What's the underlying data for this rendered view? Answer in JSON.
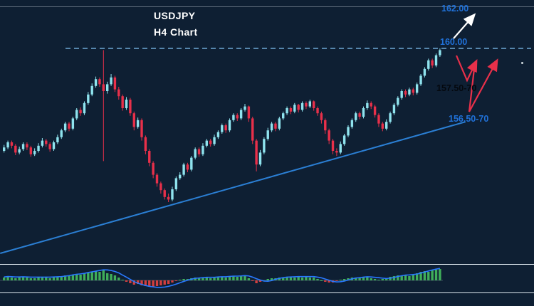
{
  "header": {
    "symbol": "USDJPY",
    "timeframe_label": "H4 Chart"
  },
  "annotations": {
    "target_upper": "162.00",
    "resistance": "160.00",
    "support_zone_upper": "157.50-70",
    "support_zone_lower": "156.50-70"
  },
  "colors": {
    "background": "#0e1f33",
    "bull": "#8fe3ee",
    "bear": "#e8304a",
    "trendline": "#2b7fd4",
    "resistance_line": "#6fa8d6",
    "label_blue": "#2071d8",
    "label_dark": "#04080e",
    "arrow_white": "#ffffff",
    "arrow_red": "#e8304a",
    "indicator_up": "#3fae5a",
    "indicator_down": "#d23f3f",
    "indicator_signal": "#2979ff",
    "separator": "#dde7ee"
  },
  "chart_data": {
    "type": "candlestick",
    "title": "USDJPY H4 Chart",
    "symbol": "USDJPY",
    "timeframe": "H4",
    "price_range_visible": [
      147.5,
      162.8
    ],
    "resistance_level": 160.0,
    "projection_target": 162.0,
    "support_zone_upper": "157.50-157.70",
    "support_zone_lower": "156.50-156.70",
    "trendline": {
      "from_index": -0.7,
      "from_price": 148.0,
      "to_index": 121,
      "to_price": 155.7
    },
    "candles": [
      [
        154.0,
        154.35,
        153.9,
        154.2
      ],
      [
        154.2,
        154.6,
        154.1,
        154.5
      ],
      [
        154.5,
        154.6,
        154.15,
        154.3
      ],
      [
        154.3,
        154.4,
        153.75,
        153.9
      ],
      [
        153.9,
        154.25,
        153.8,
        154.1
      ],
      [
        154.1,
        154.5,
        154.0,
        154.4
      ],
      [
        154.4,
        154.5,
        154.05,
        154.2
      ],
      [
        154.2,
        154.3,
        153.65,
        153.8
      ],
      [
        153.8,
        154.15,
        153.7,
        154.0
      ],
      [
        154.0,
        154.45,
        153.9,
        154.3
      ],
      [
        154.3,
        154.75,
        154.2,
        154.6
      ],
      [
        154.6,
        154.7,
        154.25,
        154.4
      ],
      [
        154.4,
        154.5,
        153.95,
        154.1
      ],
      [
        154.1,
        154.6,
        154.0,
        154.5
      ],
      [
        154.5,
        154.95,
        154.4,
        154.8
      ],
      [
        154.8,
        155.3,
        154.7,
        155.2
      ],
      [
        155.2,
        155.7,
        155.1,
        155.6
      ],
      [
        155.6,
        155.7,
        155.15,
        155.3
      ],
      [
        155.3,
        156.0,
        155.2,
        155.9
      ],
      [
        155.9,
        156.5,
        155.8,
        156.4
      ],
      [
        156.4,
        156.55,
        156.05,
        156.2
      ],
      [
        156.2,
        156.9,
        156.1,
        156.8
      ],
      [
        156.8,
        157.45,
        156.7,
        157.3
      ],
      [
        157.3,
        157.95,
        157.2,
        157.8
      ],
      [
        157.8,
        158.35,
        157.7,
        158.2
      ],
      [
        158.2,
        158.3,
        157.75,
        157.9
      ],
      [
        157.9,
        159.9,
        153.4,
        157.5
      ],
      [
        157.5,
        158.05,
        157.35,
        157.9
      ],
      [
        157.9,
        158.5,
        157.8,
        158.3
      ],
      [
        158.3,
        158.4,
        157.45,
        157.6
      ],
      [
        157.6,
        157.75,
        157.0,
        157.2
      ],
      [
        157.2,
        157.3,
        156.35,
        156.5
      ],
      [
        156.5,
        157.15,
        156.4,
        157.0
      ],
      [
        157.0,
        157.1,
        156.05,
        156.2
      ],
      [
        156.2,
        156.3,
        155.2,
        155.4
      ],
      [
        155.4,
        155.95,
        155.3,
        155.8
      ],
      [
        155.8,
        155.9,
        154.6,
        154.8
      ],
      [
        154.8,
        154.9,
        153.8,
        154.0
      ],
      [
        154.0,
        154.1,
        153.1,
        153.3
      ],
      [
        153.3,
        153.4,
        152.4,
        152.6
      ],
      [
        152.6,
        152.7,
        151.9,
        152.1
      ],
      [
        152.1,
        152.2,
        151.5,
        151.7
      ],
      [
        151.7,
        151.8,
        151.15,
        151.3
      ],
      [
        151.3,
        151.5,
        151.0,
        151.15
      ],
      [
        151.15,
        151.9,
        151.05,
        151.75
      ],
      [
        151.75,
        152.5,
        151.65,
        152.4
      ],
      [
        152.4,
        152.75,
        152.3,
        152.6
      ],
      [
        152.6,
        153.3,
        152.5,
        153.2
      ],
      [
        153.2,
        153.3,
        152.75,
        152.9
      ],
      [
        152.9,
        153.7,
        152.8,
        153.6
      ],
      [
        153.6,
        154.2,
        153.5,
        154.1
      ],
      [
        154.1,
        154.2,
        153.65,
        153.8
      ],
      [
        153.8,
        154.45,
        153.7,
        154.3
      ],
      [
        154.3,
        154.7,
        154.2,
        154.6
      ],
      [
        154.6,
        154.7,
        154.25,
        154.4
      ],
      [
        154.4,
        154.95,
        154.3,
        154.8
      ],
      [
        154.8,
        155.2,
        154.7,
        155.1
      ],
      [
        155.1,
        155.6,
        155.0,
        155.5
      ],
      [
        155.5,
        155.6,
        155.05,
        155.2
      ],
      [
        155.2,
        155.9,
        155.1,
        155.8
      ],
      [
        155.8,
        156.2,
        155.7,
        156.1
      ],
      [
        156.1,
        156.2,
        155.75,
        155.9
      ],
      [
        155.9,
        156.5,
        155.8,
        156.4
      ],
      [
        156.4,
        156.75,
        156.3,
        156.6
      ],
      [
        156.6,
        156.65,
        155.7,
        155.9
      ],
      [
        155.9,
        156.0,
        154.4,
        154.6
      ],
      [
        154.6,
        154.7,
        152.8,
        153.2
      ],
      [
        153.2,
        154.05,
        153.1,
        153.9
      ],
      [
        153.9,
        154.8,
        153.8,
        154.7
      ],
      [
        154.7,
        155.35,
        154.6,
        155.2
      ],
      [
        155.2,
        155.7,
        155.1,
        155.6
      ],
      [
        155.6,
        155.7,
        155.15,
        155.3
      ],
      [
        155.3,
        156.0,
        155.2,
        155.9
      ],
      [
        155.9,
        156.3,
        155.8,
        156.2
      ],
      [
        156.2,
        156.6,
        156.1,
        156.5
      ],
      [
        156.5,
        156.6,
        156.15,
        156.3
      ],
      [
        156.3,
        156.8,
        156.2,
        156.7
      ],
      [
        156.7,
        156.75,
        156.25,
        156.4
      ],
      [
        156.4,
        156.9,
        156.3,
        156.8
      ],
      [
        156.8,
        156.9,
        156.45,
        156.6
      ],
      [
        156.6,
        157.0,
        156.5,
        156.9
      ],
      [
        156.9,
        156.95,
        156.35,
        156.5
      ],
      [
        156.5,
        156.6,
        156.05,
        156.2
      ],
      [
        156.2,
        156.3,
        155.6,
        155.8
      ],
      [
        155.8,
        155.9,
        155.0,
        155.2
      ],
      [
        155.2,
        155.3,
        154.4,
        154.6
      ],
      [
        154.6,
        154.7,
        153.8,
        154.0
      ],
      [
        154.0,
        154.15,
        153.7,
        153.9
      ],
      [
        153.9,
        154.55,
        153.8,
        154.4
      ],
      [
        154.4,
        155.0,
        154.3,
        154.9
      ],
      [
        154.9,
        155.5,
        154.8,
        155.4
      ],
      [
        155.4,
        155.9,
        155.3,
        155.8
      ],
      [
        155.8,
        156.3,
        155.7,
        156.2
      ],
      [
        156.2,
        156.3,
        155.85,
        156.0
      ],
      [
        156.0,
        156.6,
        155.9,
        156.5
      ],
      [
        156.5,
        156.95,
        156.4,
        156.8
      ],
      [
        156.8,
        156.9,
        156.45,
        156.6
      ],
      [
        156.6,
        156.7,
        155.95,
        156.1
      ],
      [
        156.1,
        156.2,
        155.4,
        155.6
      ],
      [
        155.6,
        155.7,
        155.15,
        155.3
      ],
      [
        155.3,
        155.85,
        155.2,
        155.7
      ],
      [
        155.7,
        156.3,
        155.6,
        156.2
      ],
      [
        156.2,
        156.8,
        156.1,
        156.7
      ],
      [
        156.7,
        157.2,
        156.6,
        157.1
      ],
      [
        157.1,
        157.6,
        157.0,
        157.5
      ],
      [
        157.5,
        157.6,
        157.15,
        157.3
      ],
      [
        157.3,
        157.7,
        157.2,
        157.6
      ],
      [
        157.6,
        157.7,
        157.25,
        157.4
      ],
      [
        157.4,
        158.0,
        157.3,
        157.9
      ],
      [
        157.9,
        158.5,
        157.8,
        158.4
      ],
      [
        158.4,
        158.9,
        158.3,
        158.8
      ],
      [
        158.8,
        159.4,
        158.7,
        159.3
      ],
      [
        159.3,
        159.4,
        158.85,
        159.0
      ],
      [
        159.0,
        159.7,
        158.9,
        159.6
      ],
      [
        159.6,
        160.0,
        159.5,
        159.9
      ]
    ],
    "indicator": {
      "type": "oscillator-histogram-with-signal",
      "values": [
        4,
        5,
        4,
        3,
        4,
        5,
        4,
        3,
        3,
        4,
        5,
        4,
        3,
        4,
        5,
        6,
        7,
        6,
        8,
        9,
        8,
        10,
        11,
        12,
        13,
        12,
        14,
        10,
        9,
        7,
        4,
        1,
        -2,
        -4,
        -6,
        -5,
        -7,
        -8,
        -9,
        -9,
        -8,
        -7,
        -6,
        -5,
        -3,
        -1,
        1,
        2,
        2,
        3,
        4,
        3,
        4,
        4,
        3,
        4,
        5,
        5,
        4,
        5,
        6,
        5,
        6,
        6,
        3,
        -1,
        -4,
        -2,
        0,
        2,
        3,
        3,
        4,
        4,
        5,
        4,
        4,
        5,
        4,
        5,
        4,
        4,
        2,
        0,
        -2,
        -3,
        -3,
        -1,
        1,
        2,
        3,
        4,
        4,
        3,
        5,
        5,
        3,
        2,
        1,
        2,
        3,
        5,
        6,
        7,
        6,
        7,
        6,
        8,
        10,
        12,
        13,
        12,
        14,
        15,
        16
      ],
      "signal_smoothing_period": 5
    }
  }
}
